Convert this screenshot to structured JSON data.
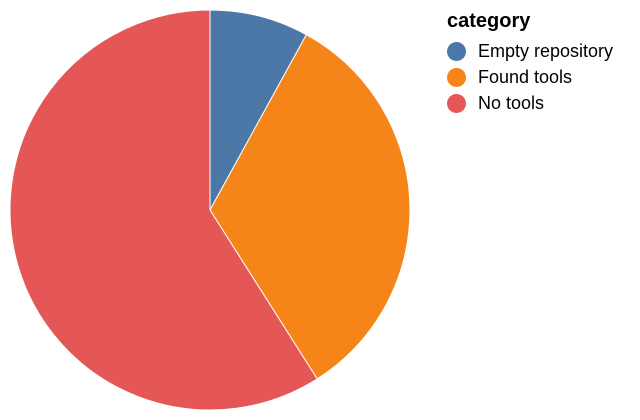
{
  "chart_data": {
    "type": "pie",
    "title": "",
    "legend_title": "category",
    "legend_placement": "top-right",
    "start_angle": "12 o'clock, clockwise",
    "slices": [
      {
        "label": "Empty repository",
        "value": 8,
        "color": "#4c78a8"
      },
      {
        "label": "Found tools",
        "value": 33,
        "color": "#f58518"
      },
      {
        "label": "No tools",
        "value": 59,
        "color": "#e45756"
      }
    ],
    "slice_border_color": "#ffffff"
  }
}
